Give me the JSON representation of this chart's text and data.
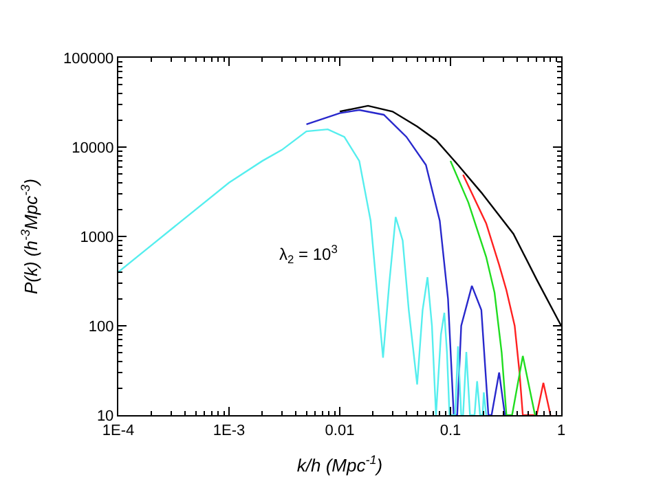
{
  "chart_data": {
    "type": "line",
    "xlabel": "k/h (Mpc$^{-1}$)",
    "ylabel": "P(k) (h$^{-3}$Mpc$^{-3}$)",
    "log": "xy",
    "marker": "none",
    "line_style": "solid",
    "xlim": [
      0.0001,
      1
    ],
    "ylim": [
      10,
      100000
    ],
    "xticks": [
      {
        "value": 0.0001,
        "label": "1E-4"
      },
      {
        "value": 0.001,
        "label": "1E-3"
      },
      0.01,
      0.1,
      1
    ],
    "yticks": [
      10,
      100,
      1000,
      10000,
      100000
    ],
    "annotations": [
      "λ$_{2}$ = 10$^{3}$"
    ],
    "series": [
      {
        "color": "#000000",
        "x": [
          0.01,
          0.018,
          0.03,
          0.05,
          0.074,
          0.117,
          0.19,
          0.37,
          0.6,
          1
        ],
        "values": [
          25000,
          29000,
          25000,
          17000,
          12000,
          6300,
          3100,
          1070,
          330,
          100
        ]
      },
      {
        "color": "#ff2020",
        "x": [
          0.13,
          0.21,
          0.275,
          0.32,
          0.38,
          0.42,
          0.45,
          0.6,
          0.69,
          0.8
        ],
        "values": [
          4900,
          1400,
          480,
          250,
          100,
          30,
          10,
          10,
          23,
          10
        ]
      },
      {
        "color": "#20dd20",
        "x": [
          0.1,
          0.145,
          0.21,
          0.25,
          0.29,
          0.32,
          0.36,
          0.45,
          0.58
        ],
        "values": [
          7000,
          2400,
          590,
          235,
          50,
          10,
          10,
          46,
          10
        ]
      },
      {
        "color": "#2828cc",
        "x": [
          0.005,
          0.01,
          0.015,
          0.025,
          0.04,
          0.06,
          0.08,
          0.095,
          0.107,
          0.115,
          0.125,
          0.156,
          0.19,
          0.22,
          0.235,
          0.275,
          0.31
        ],
        "values": [
          18000,
          24000,
          26000,
          23000,
          13000,
          6300,
          1500,
          200,
          10,
          10,
          100,
          280,
          150,
          10,
          10,
          30,
          10
        ]
      },
      {
        "color": "#55eeee",
        "x": [
          0.0001,
          0.0002,
          0.0005,
          0.001,
          0.002,
          0.003,
          0.005,
          0.0078,
          0.011,
          0.015,
          0.019,
          0.022,
          0.0246,
          0.028,
          0.032,
          0.037,
          0.042,
          0.05,
          0.056,
          0.062,
          0.068,
          0.074,
          0.082,
          0.088,
          0.093,
          0.098,
          0.11,
          0.117,
          0.125,
          0.13,
          0.139,
          0.15,
          0.165,
          0.174,
          0.185,
          0.195,
          0.2,
          0.21
        ],
        "values": [
          400,
          800,
          2000,
          4000,
          7000,
          9300,
          15000,
          15800,
          13000,
          7000,
          1500,
          200,
          44,
          300,
          1650,
          900,
          150,
          22,
          150,
          350,
          100,
          10,
          80,
          140,
          50,
          10,
          10,
          59,
          10,
          10,
          51,
          10,
          10,
          24,
          10,
          10,
          18,
          10
        ]
      }
    ]
  }
}
